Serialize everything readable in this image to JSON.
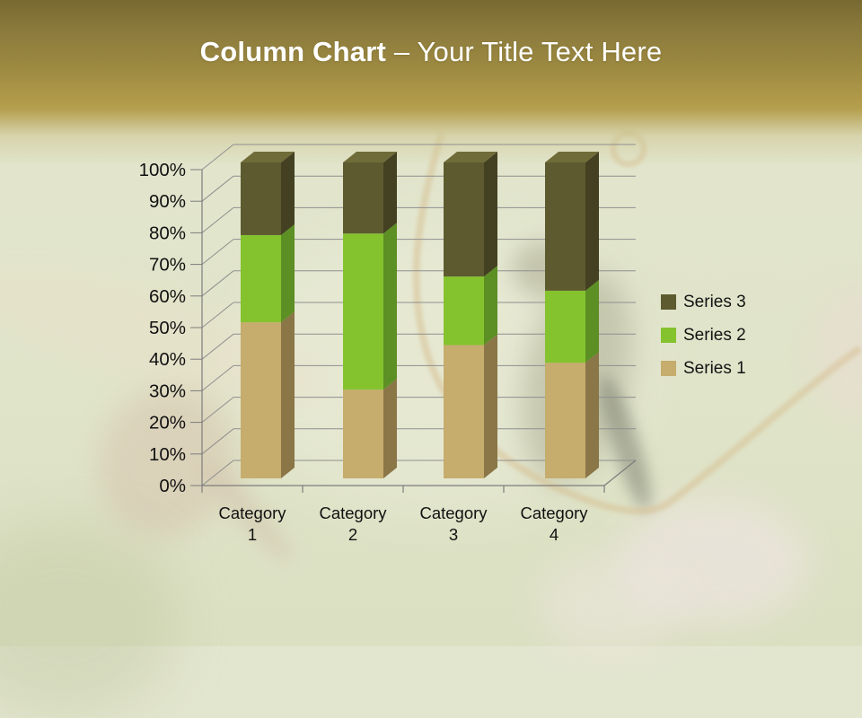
{
  "slide": {
    "title_bold": "Column Chart",
    "title_regular": "– Your Title Text Here",
    "colors": {
      "header_gold": "#b5a050",
      "title_text": "#ffffff",
      "background_sage": "#e1e5cb"
    }
  },
  "chart_data": {
    "type": "bar",
    "subtype": "stacked-100-percent-3d",
    "title": "",
    "xlabel": "",
    "ylabel": "",
    "ylim": [
      0,
      100
    ],
    "grid": true,
    "legend_position": "right",
    "categories": [
      "Category 1",
      "Category 2",
      "Category 3",
      "Category 4"
    ],
    "y_ticks": [
      "0%",
      "10%",
      "20%",
      "30%",
      "40%",
      "50%",
      "60%",
      "70%",
      "80%",
      "90%",
      "100%"
    ],
    "series": [
      {
        "name": "Series 1",
        "percent": [
          49.4,
          28.1,
          42.2,
          36.6
        ],
        "color": "#c6ac6d",
        "side_color": "#8a7647"
      },
      {
        "name": "Series 2",
        "percent": [
          27.6,
          49.4,
          21.7,
          22.8
        ],
        "color": "#84c32e",
        "side_color": "#5c8f24"
      },
      {
        "name": "Series 3",
        "percent": [
          23.0,
          22.5,
          36.1,
          40.6
        ],
        "color": "#5d5a30",
        "side_color": "#434121",
        "top_color": "#6f6c39"
      }
    ],
    "legend_items": [
      {
        "label": "Series 3",
        "color": "#5d5a30"
      },
      {
        "label": "Series 2",
        "color": "#84c32e"
      },
      {
        "label": "Series 1",
        "color": "#c6ac6d"
      }
    ]
  }
}
